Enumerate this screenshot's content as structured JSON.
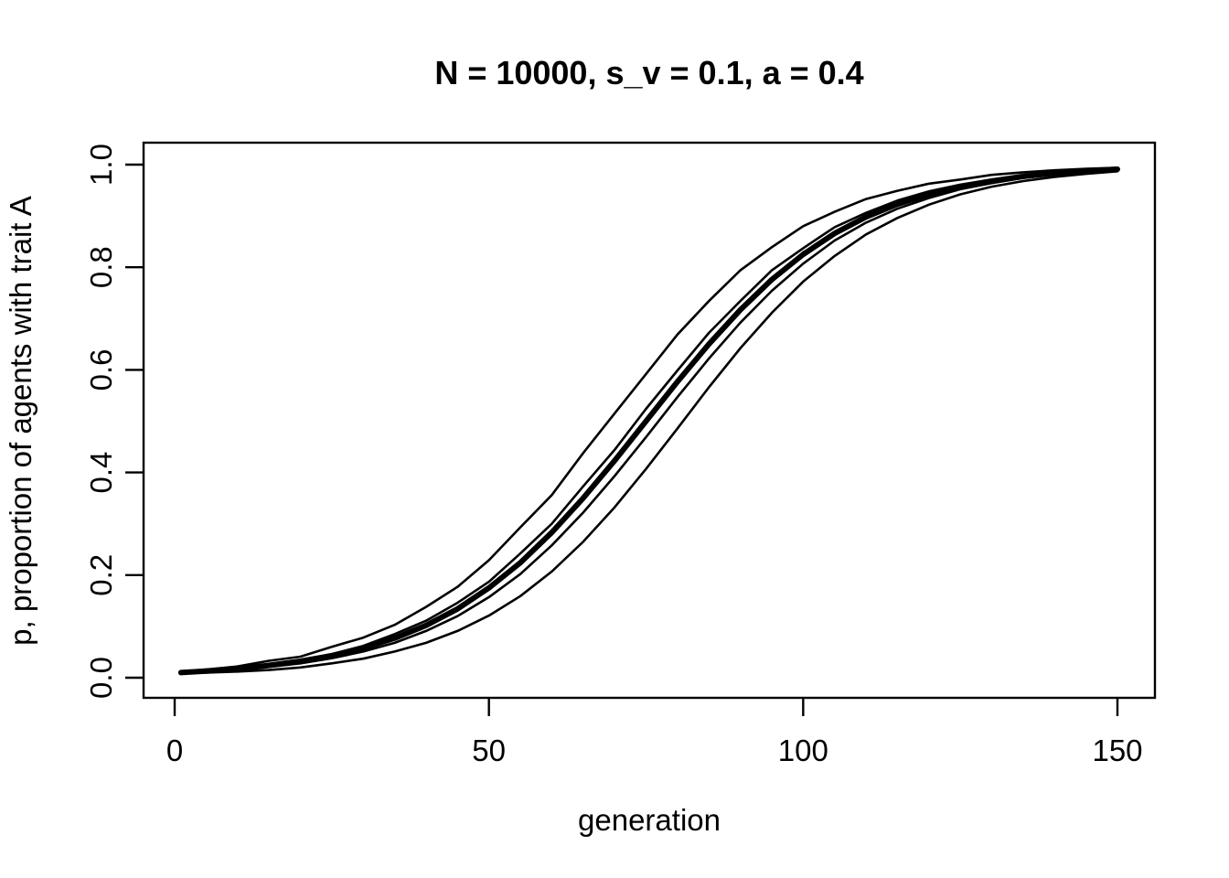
{
  "chart_data": {
    "type": "line",
    "title": "N = 10000, s_v = 0.1, a = 0.4",
    "xlabel": "generation",
    "ylabel": "p, proportion of agents with trait A",
    "xlim": [
      0,
      150
    ],
    "ylim": [
      0.0,
      1.0
    ],
    "xticks": [
      0,
      50,
      100,
      150
    ],
    "xtick_labels": [
      "0",
      "50",
      "100",
      "150"
    ],
    "yticks": [
      0.0,
      0.2,
      0.4,
      0.6,
      0.8,
      1.0
    ],
    "ytick_labels": [
      "0.0",
      "0.2",
      "0.4",
      "0.6",
      "0.8",
      "1.0"
    ],
    "grid": false,
    "legend_position": "none",
    "line_color": "#000000",
    "background_color": "#ffffff",
    "x": [
      1,
      5,
      10,
      15,
      20,
      25,
      30,
      35,
      40,
      45,
      50,
      55,
      60,
      65,
      70,
      75,
      80,
      85,
      90,
      95,
      100,
      105,
      110,
      115,
      120,
      125,
      130,
      135,
      140,
      145,
      150
    ],
    "series": [
      {
        "name": "run-1",
        "style": "thin",
        "values": [
          0.012,
          0.016,
          0.022,
          0.033,
          0.041,
          0.06,
          0.078,
          0.103,
          0.138,
          0.177,
          0.229,
          0.293,
          0.356,
          0.438,
          0.515,
          0.592,
          0.669,
          0.734,
          0.794,
          0.839,
          0.88,
          0.908,
          0.933,
          0.949,
          0.963,
          0.971,
          0.98,
          0.985,
          0.989,
          0.992,
          0.994
        ]
      },
      {
        "name": "run-2",
        "style": "thin",
        "values": [
          0.011,
          0.014,
          0.019,
          0.026,
          0.034,
          0.046,
          0.062,
          0.085,
          0.111,
          0.146,
          0.187,
          0.242,
          0.3,
          0.373,
          0.444,
          0.524,
          0.599,
          0.672,
          0.734,
          0.794,
          0.837,
          0.878,
          0.906,
          0.93,
          0.948,
          0.961,
          0.971,
          0.979,
          0.985,
          0.988,
          0.992
        ]
      },
      {
        "name": "run-3",
        "style": "thin",
        "values": [
          0.01,
          0.012,
          0.016,
          0.025,
          0.031,
          0.044,
          0.056,
          0.079,
          0.1,
          0.137,
          0.172,
          0.227,
          0.279,
          0.354,
          0.419,
          0.504,
          0.581,
          0.646,
          0.721,
          0.772,
          0.829,
          0.863,
          0.901,
          0.921,
          0.944,
          0.955,
          0.969,
          0.976,
          0.984,
          0.986,
          0.991
        ]
      },
      {
        "name": "run-4",
        "style": "thin",
        "values": [
          0.01,
          0.011,
          0.015,
          0.021,
          0.028,
          0.038,
          0.051,
          0.068,
          0.091,
          0.12,
          0.157,
          0.202,
          0.258,
          0.322,
          0.393,
          0.469,
          0.547,
          0.622,
          0.692,
          0.754,
          0.807,
          0.852,
          0.887,
          0.914,
          0.935,
          0.952,
          0.964,
          0.974,
          0.981,
          0.985,
          0.99
        ]
      },
      {
        "name": "run-5",
        "style": "thin",
        "values": [
          0.009,
          0.01,
          0.012,
          0.015,
          0.02,
          0.028,
          0.037,
          0.051,
          0.068,
          0.091,
          0.121,
          0.159,
          0.207,
          0.265,
          0.332,
          0.407,
          0.486,
          0.566,
          0.642,
          0.711,
          0.772,
          0.822,
          0.864,
          0.896,
          0.922,
          0.942,
          0.957,
          0.968,
          0.976,
          0.982,
          0.987
        ]
      },
      {
        "name": "mean",
        "style": "thick",
        "values": [
          0.01,
          0.013,
          0.017,
          0.024,
          0.032,
          0.043,
          0.058,
          0.077,
          0.102,
          0.134,
          0.175,
          0.224,
          0.283,
          0.35,
          0.423,
          0.5,
          0.577,
          0.65,
          0.717,
          0.776,
          0.825,
          0.866,
          0.898,
          0.923,
          0.942,
          0.957,
          0.968,
          0.977,
          0.983,
          0.987,
          0.991
        ]
      }
    ]
  }
}
